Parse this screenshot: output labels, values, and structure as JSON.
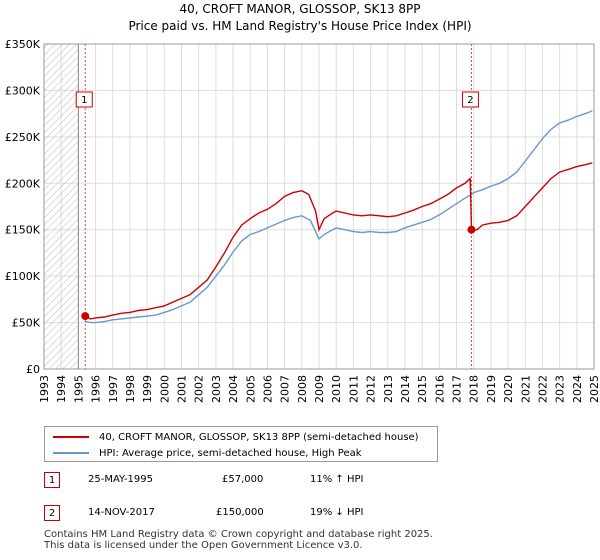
{
  "chart_data": {
    "type": "line",
    "title": "40, CROFT MANOR, GLOSSOP, SK13 8PP",
    "subtitle": "Price paid vs. HM Land Registry's House Price Index (HPI)",
    "xlim": [
      1993,
      2025
    ],
    "ylim": [
      0,
      350000
    ],
    "xticks": [
      "1993",
      "1994",
      "1995",
      "1996",
      "1997",
      "1998",
      "1999",
      "2000",
      "2001",
      "2002",
      "2003",
      "2004",
      "2005",
      "2006",
      "2007",
      "2008",
      "2009",
      "2010",
      "2011",
      "2012",
      "2013",
      "2014",
      "2015",
      "2016",
      "2017",
      "2018",
      "2019",
      "2020",
      "2021",
      "2022",
      "2023",
      "2024",
      "2025"
    ],
    "yticks": [
      {
        "value": 0,
        "label": "£0"
      },
      {
        "value": 50000,
        "label": "£50K"
      },
      {
        "value": 100000,
        "label": "£100K"
      },
      {
        "value": 150000,
        "label": "£150K"
      },
      {
        "value": 200000,
        "label": "£200K"
      },
      {
        "value": 250000,
        "label": "£250K"
      },
      {
        "value": 300000,
        "label": "£300K"
      },
      {
        "value": 350000,
        "label": "£350K"
      }
    ],
    "grid": true,
    "series": [
      {
        "name": "40, CROFT MANOR, GLOSSOP, SK13 8PP (semi-detached house)",
        "color": "#cc0000",
        "points": [
          [
            1995.4,
            57000
          ],
          [
            1995.7,
            54000
          ],
          [
            1996,
            55000
          ],
          [
            1996.5,
            56000
          ],
          [
            1997,
            58000
          ],
          [
            1997.5,
            60000
          ],
          [
            1998,
            61000
          ],
          [
            1998.5,
            63000
          ],
          [
            1999,
            64000
          ],
          [
            1999.5,
            66000
          ],
          [
            2000,
            68000
          ],
          [
            2000.5,
            72000
          ],
          [
            2001,
            76000
          ],
          [
            2001.5,
            80000
          ],
          [
            2002,
            88000
          ],
          [
            2002.5,
            96000
          ],
          [
            2003,
            110000
          ],
          [
            2003.5,
            125000
          ],
          [
            2004,
            142000
          ],
          [
            2004.5,
            155000
          ],
          [
            2005,
            162000
          ],
          [
            2005.5,
            168000
          ],
          [
            2006,
            172000
          ],
          [
            2006.5,
            178000
          ],
          [
            2007,
            186000
          ],
          [
            2007.5,
            190000
          ],
          [
            2008,
            192000
          ],
          [
            2008.4,
            188000
          ],
          [
            2008.8,
            170000
          ],
          [
            2009,
            150000
          ],
          [
            2009.3,
            162000
          ],
          [
            2009.8,
            168000
          ],
          [
            2010,
            170000
          ],
          [
            2010.5,
            168000
          ],
          [
            2011,
            166000
          ],
          [
            2011.5,
            165000
          ],
          [
            2012,
            166000
          ],
          [
            2012.5,
            165000
          ],
          [
            2013,
            164000
          ],
          [
            2013.5,
            165000
          ],
          [
            2014,
            168000
          ],
          [
            2014.5,
            171000
          ],
          [
            2015,
            175000
          ],
          [
            2015.5,
            178000
          ],
          [
            2016,
            183000
          ],
          [
            2016.5,
            188000
          ],
          [
            2017,
            195000
          ],
          [
            2017.5,
            200000
          ],
          [
            2017.8,
            205000
          ],
          [
            2017.87,
            150000
          ],
          [
            2018.2,
            150000
          ],
          [
            2018.5,
            155000
          ],
          [
            2019,
            157000
          ],
          [
            2019.5,
            158000
          ],
          [
            2020,
            160000
          ],
          [
            2020.5,
            165000
          ],
          [
            2021,
            175000
          ],
          [
            2021.5,
            185000
          ],
          [
            2022,
            195000
          ],
          [
            2022.5,
            205000
          ],
          [
            2023,
            212000
          ],
          [
            2023.5,
            215000
          ],
          [
            2024,
            218000
          ],
          [
            2024.5,
            220000
          ],
          [
            2024.9,
            222000
          ]
        ]
      },
      {
        "name": "HPI: Average price, semi-detached house, High Peak",
        "color": "#6699cc",
        "points": [
          [
            1995.4,
            51000
          ],
          [
            1995.7,
            50000
          ],
          [
            1996,
            50000
          ],
          [
            1996.5,
            51000
          ],
          [
            1997,
            53000
          ],
          [
            1997.5,
            54000
          ],
          [
            1998,
            55000
          ],
          [
            1998.5,
            56000
          ],
          [
            1999,
            57000
          ],
          [
            1999.5,
            58000
          ],
          [
            2000,
            61000
          ],
          [
            2000.5,
            64000
          ],
          [
            2001,
            68000
          ],
          [
            2001.5,
            72000
          ],
          [
            2002,
            80000
          ],
          [
            2002.5,
            88000
          ],
          [
            2003,
            100000
          ],
          [
            2003.5,
            112000
          ],
          [
            2004,
            126000
          ],
          [
            2004.5,
            138000
          ],
          [
            2005,
            145000
          ],
          [
            2005.5,
            148000
          ],
          [
            2006,
            152000
          ],
          [
            2006.5,
            156000
          ],
          [
            2007,
            160000
          ],
          [
            2007.5,
            163000
          ],
          [
            2008,
            165000
          ],
          [
            2008.5,
            160000
          ],
          [
            2009,
            140000
          ],
          [
            2009.3,
            145000
          ],
          [
            2009.8,
            150000
          ],
          [
            2010,
            152000
          ],
          [
            2010.5,
            150000
          ],
          [
            2011,
            148000
          ],
          [
            2011.5,
            147000
          ],
          [
            2012,
            148000
          ],
          [
            2012.5,
            147000
          ],
          [
            2013,
            147000
          ],
          [
            2013.5,
            148000
          ],
          [
            2014,
            152000
          ],
          [
            2014.5,
            155000
          ],
          [
            2015,
            158000
          ],
          [
            2015.5,
            161000
          ],
          [
            2016,
            166000
          ],
          [
            2016.5,
            172000
          ],
          [
            2017,
            178000
          ],
          [
            2017.5,
            184000
          ],
          [
            2017.87,
            188000
          ],
          [
            2018,
            190000
          ],
          [
            2018.5,
            193000
          ],
          [
            2019,
            197000
          ],
          [
            2019.5,
            200000
          ],
          [
            2020,
            205000
          ],
          [
            2020.5,
            212000
          ],
          [
            2021,
            224000
          ],
          [
            2021.5,
            236000
          ],
          [
            2022,
            248000
          ],
          [
            2022.5,
            258000
          ],
          [
            2023,
            265000
          ],
          [
            2023.5,
            268000
          ],
          [
            2024,
            272000
          ],
          [
            2024.5,
            275000
          ],
          [
            2024.9,
            278000
          ]
        ]
      }
    ],
    "sales": [
      {
        "label": "1",
        "x": 1995.4,
        "value": 57000
      },
      {
        "label": "2",
        "x": 2017.87,
        "value": 150000
      }
    ],
    "hatched_until": 1995.0
  },
  "legend": {
    "red": "40, CROFT MANOR, GLOSSOP, SK13 8PP (semi-detached house)",
    "blue": "HPI: Average price, semi-detached house, High Peak"
  },
  "transactions": [
    {
      "n": "1",
      "date": "25-MAY-1995",
      "price": "£57,000",
      "hpi": "11% ↑ HPI"
    },
    {
      "n": "2",
      "date": "14-NOV-2017",
      "price": "£150,000",
      "hpi": "19% ↓ HPI"
    }
  ],
  "footer": {
    "line1": "Contains HM Land Registry data © Crown copyright and database right 2025.",
    "line2": "This data is licensed under the Open Government Licence v3.0."
  }
}
